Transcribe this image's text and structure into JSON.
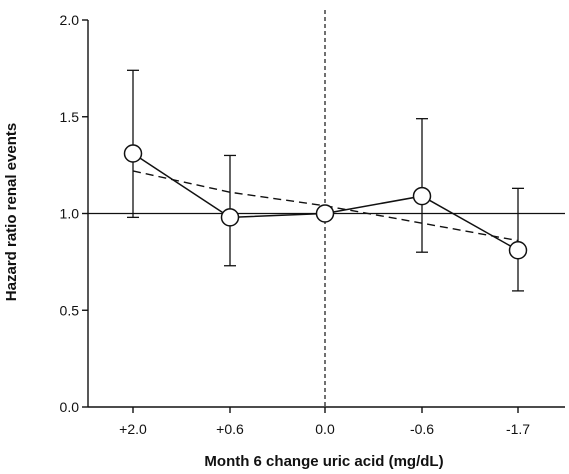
{
  "chart_data": {
    "type": "line",
    "title": "",
    "xlabel": "Month 6 change uric acid (mg/dL)",
    "ylabel": "Hazard ratio renal events",
    "categories": [
      "+2.0",
      "+0.6",
      "0.0",
      "-0.6",
      "-1.7"
    ],
    "ylim": [
      0.0,
      2.0
    ],
    "yticks": [
      0.0,
      0.5,
      1.0,
      1.5,
      2.0
    ],
    "ytick_labels": [
      "0.0",
      "0.5",
      "1.0",
      "1.5",
      "2.0"
    ],
    "grid": false,
    "reference_line_y": 1.0,
    "reference_line_x_category": "0.0",
    "series": [
      {
        "values": [
          1.31,
          0.98,
          1.0,
          1.09,
          0.81
        ],
        "ci_lower": [
          0.98,
          0.73,
          1.0,
          0.8,
          0.6
        ],
        "ci_upper": [
          1.74,
          1.3,
          1.0,
          1.49,
          1.13
        ],
        "marker": "open-circle",
        "line_style": "solid"
      },
      {
        "values": [
          1.22,
          1.11,
          1.04,
          0.95,
          0.86
        ],
        "line_style": "dashed"
      }
    ],
    "colors": {
      "line": "#111111",
      "marker_fill": "#ffffff",
      "background": "#ffffff"
    }
  }
}
